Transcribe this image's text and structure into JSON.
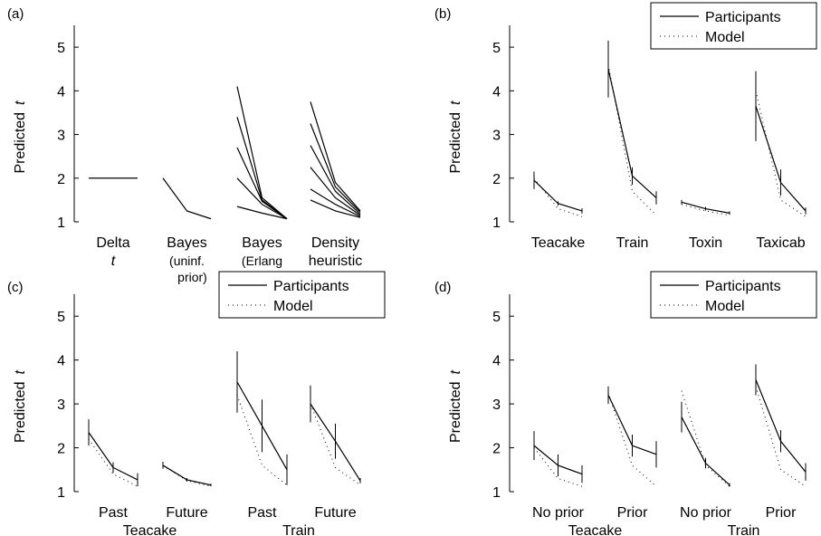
{
  "chart_data": [
    {
      "panel": "(a)",
      "type": "line",
      "ylabel": "Predicted",
      "ylabel_var": "t",
      "ylim": [
        1,
        5.5
      ],
      "yticks": [
        "1",
        "2",
        "3",
        "4",
        "5"
      ],
      "groups": [
        {
          "line1": "Delta",
          "line2": "t",
          "italic2": true,
          "extra": []
        },
        {
          "line1": "Bayes",
          "line2": "",
          "italic2": false,
          "extra": [
            "(uninf.",
            "prior)"
          ]
        },
        {
          "line1": "Bayes",
          "line2": "",
          "italic2": false,
          "extra": [
            "(Erlang",
            "prior)"
          ]
        },
        {
          "line1": "Density",
          "line2": "heuristic",
          "italic2": false,
          "extra": []
        }
      ],
      "series": [
        {
          "group": 0,
          "values": [
            2.0,
            2.0,
            2.0
          ]
        },
        {
          "group": 1,
          "values": [
            2.0,
            1.25,
            1.07
          ]
        },
        {
          "group": 2,
          "values": [
            4.1,
            1.55,
            1.07
          ]
        },
        {
          "group": 2,
          "values": [
            3.4,
            1.5,
            1.07
          ]
        },
        {
          "group": 2,
          "values": [
            2.7,
            1.47,
            1.07
          ]
        },
        {
          "group": 2,
          "values": [
            2.0,
            1.4,
            1.07
          ]
        },
        {
          "group": 2,
          "values": [
            1.35,
            1.2,
            1.07
          ]
        },
        {
          "group": 3,
          "values": [
            3.75,
            1.9,
            1.25
          ]
        },
        {
          "group": 3,
          "values": [
            3.25,
            1.8,
            1.22
          ]
        },
        {
          "group": 3,
          "values": [
            2.75,
            1.7,
            1.18
          ]
        },
        {
          "group": 3,
          "values": [
            2.25,
            1.55,
            1.15
          ]
        },
        {
          "group": 3,
          "values": [
            1.75,
            1.4,
            1.12
          ]
        },
        {
          "group": 3,
          "values": [
            1.5,
            1.25,
            1.1
          ]
        }
      ]
    },
    {
      "panel": "(b)",
      "type": "line",
      "ylabel": "Predicted",
      "ylabel_var": "t",
      "ylim": [
        1,
        5.5
      ],
      "yticks": [
        "1",
        "2",
        "3",
        "4",
        "5"
      ],
      "legend": {
        "position": "top-right",
        "participants": "Participants",
        "model": "Model"
      },
      "groups": [
        {
          "line1": "Teacake",
          "line2": "",
          "extra": [],
          "participants": [
            1.95,
            1.42,
            1.25
          ],
          "errors": [
            0.2,
            0.05,
            0.06
          ],
          "model": [
            2.0,
            1.3,
            1.12
          ]
        },
        {
          "line1": "Train",
          "line2": "",
          "extra": [],
          "participants": [
            4.5,
            2.05,
            1.55
          ],
          "errors": [
            0.65,
            0.2,
            0.15
          ],
          "model": [
            4.6,
            1.7,
            1.15
          ]
        },
        {
          "line1": "Toxin",
          "line2": "",
          "extra": [],
          "participants": [
            1.45,
            1.3,
            1.2
          ],
          "errors": [
            0.05,
            0.04,
            0.04
          ],
          "model": [
            1.4,
            1.25,
            1.15
          ]
        },
        {
          "line1": "Taxicab",
          "line2": "",
          "extra": [],
          "participants": [
            3.65,
            1.9,
            1.25
          ],
          "errors": [
            0.8,
            0.3,
            0.08
          ],
          "model": [
            4.0,
            1.5,
            1.12
          ]
        }
      ]
    },
    {
      "panel": "(c)",
      "type": "line",
      "ylabel": "Predicted",
      "ylabel_var": "t",
      "ylim": [
        1,
        5.5
      ],
      "yticks": [
        "1",
        "2",
        "3",
        "4",
        "5"
      ],
      "legend": {
        "position": "top-right",
        "participants": "Participants",
        "model": "Model"
      },
      "groups": [
        {
          "line1": "Past",
          "line2": "",
          "extra": [],
          "participants": [
            2.35,
            1.55,
            1.27
          ],
          "errors": [
            0.3,
            0.12,
            0.15
          ],
          "model": [
            2.2,
            1.4,
            1.12
          ]
        },
        {
          "line1": "Future",
          "line2": "",
          "extra": [],
          "participants": [
            1.6,
            1.27,
            1.15
          ],
          "errors": [
            0.08,
            0.04,
            0.03
          ],
          "model": [
            1.6,
            1.25,
            1.12
          ]
        },
        {
          "line1": "Past",
          "line2": "",
          "extra": [],
          "participants": [
            3.5,
            2.5,
            1.5
          ],
          "errors": [
            0.7,
            0.6,
            0.35
          ],
          "model": [
            3.2,
            1.6,
            1.15
          ]
        },
        {
          "line1": "Future",
          "line2": "",
          "extra": [],
          "participants": [
            3.0,
            2.15,
            1.25
          ],
          "errors": [
            0.42,
            0.4,
            0.06
          ],
          "model": [
            3.0,
            1.55,
            1.15
          ]
        }
      ],
      "bottom_labels": [
        "Teacake",
        "Train"
      ]
    },
    {
      "panel": "(d)",
      "type": "line",
      "ylabel": "Predicted",
      "ylabel_var": "t",
      "ylim": [
        1,
        5.5
      ],
      "yticks": [
        "1",
        "2",
        "3",
        "4",
        "5"
      ],
      "legend": {
        "position": "top-right",
        "participants": "Participants",
        "model": "Model"
      },
      "groups": [
        {
          "line1": "No prior",
          "line2": "",
          "extra": [],
          "participants": [
            2.05,
            1.6,
            1.4
          ],
          "errors": [
            0.33,
            0.25,
            0.2
          ],
          "model": [
            2.0,
            1.3,
            1.12
          ]
        },
        {
          "line1": "Prior",
          "line2": "",
          "extra": [],
          "participants": [
            3.2,
            2.05,
            1.85
          ],
          "errors": [
            0.2,
            0.25,
            0.3
          ],
          "model": [
            3.25,
            1.6,
            1.12
          ]
        },
        {
          "line1": "No prior",
          "line2": "",
          "extra": [],
          "participants": [
            2.7,
            1.65,
            1.15
          ],
          "errors": [
            0.35,
            0.12,
            0.04
          ],
          "model": [
            3.3,
            1.6,
            1.12
          ]
        },
        {
          "line1": "Prior",
          "line2": "",
          "extra": [],
          "participants": [
            3.55,
            2.15,
            1.45
          ],
          "errors": [
            0.35,
            0.25,
            0.2
          ],
          "model": [
            3.4,
            1.5,
            1.12
          ]
        }
      ],
      "bottom_labels": [
        "Teacake",
        "Train"
      ]
    }
  ]
}
